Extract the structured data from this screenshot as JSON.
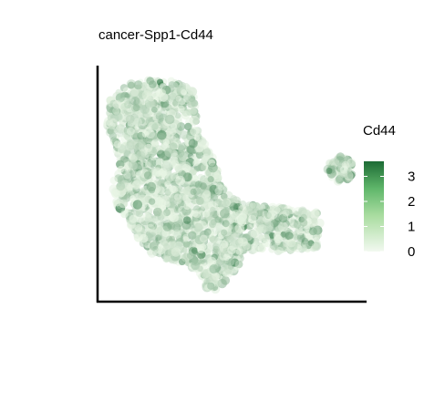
{
  "chart_data": {
    "type": "scatter",
    "title": "cancer-Spp1-Cd44",
    "xlabel": "",
    "ylabel": "",
    "axes": {
      "x_line": true,
      "y_line": true,
      "ticks": false,
      "grid": false
    },
    "color_scale": {
      "title": "Cd44",
      "min": 0,
      "max": 3.6,
      "ticks": [
        0,
        1,
        2,
        3
      ],
      "tick_labels": [
        "0",
        "1",
        "2",
        "3"
      ],
      "low_color": "#f2f9f0",
      "high_color": "#1d6b35"
    },
    "legend_position": "right",
    "point_color_low": "#eaf6e6",
    "point_color_high": "#1d6b35"
  }
}
